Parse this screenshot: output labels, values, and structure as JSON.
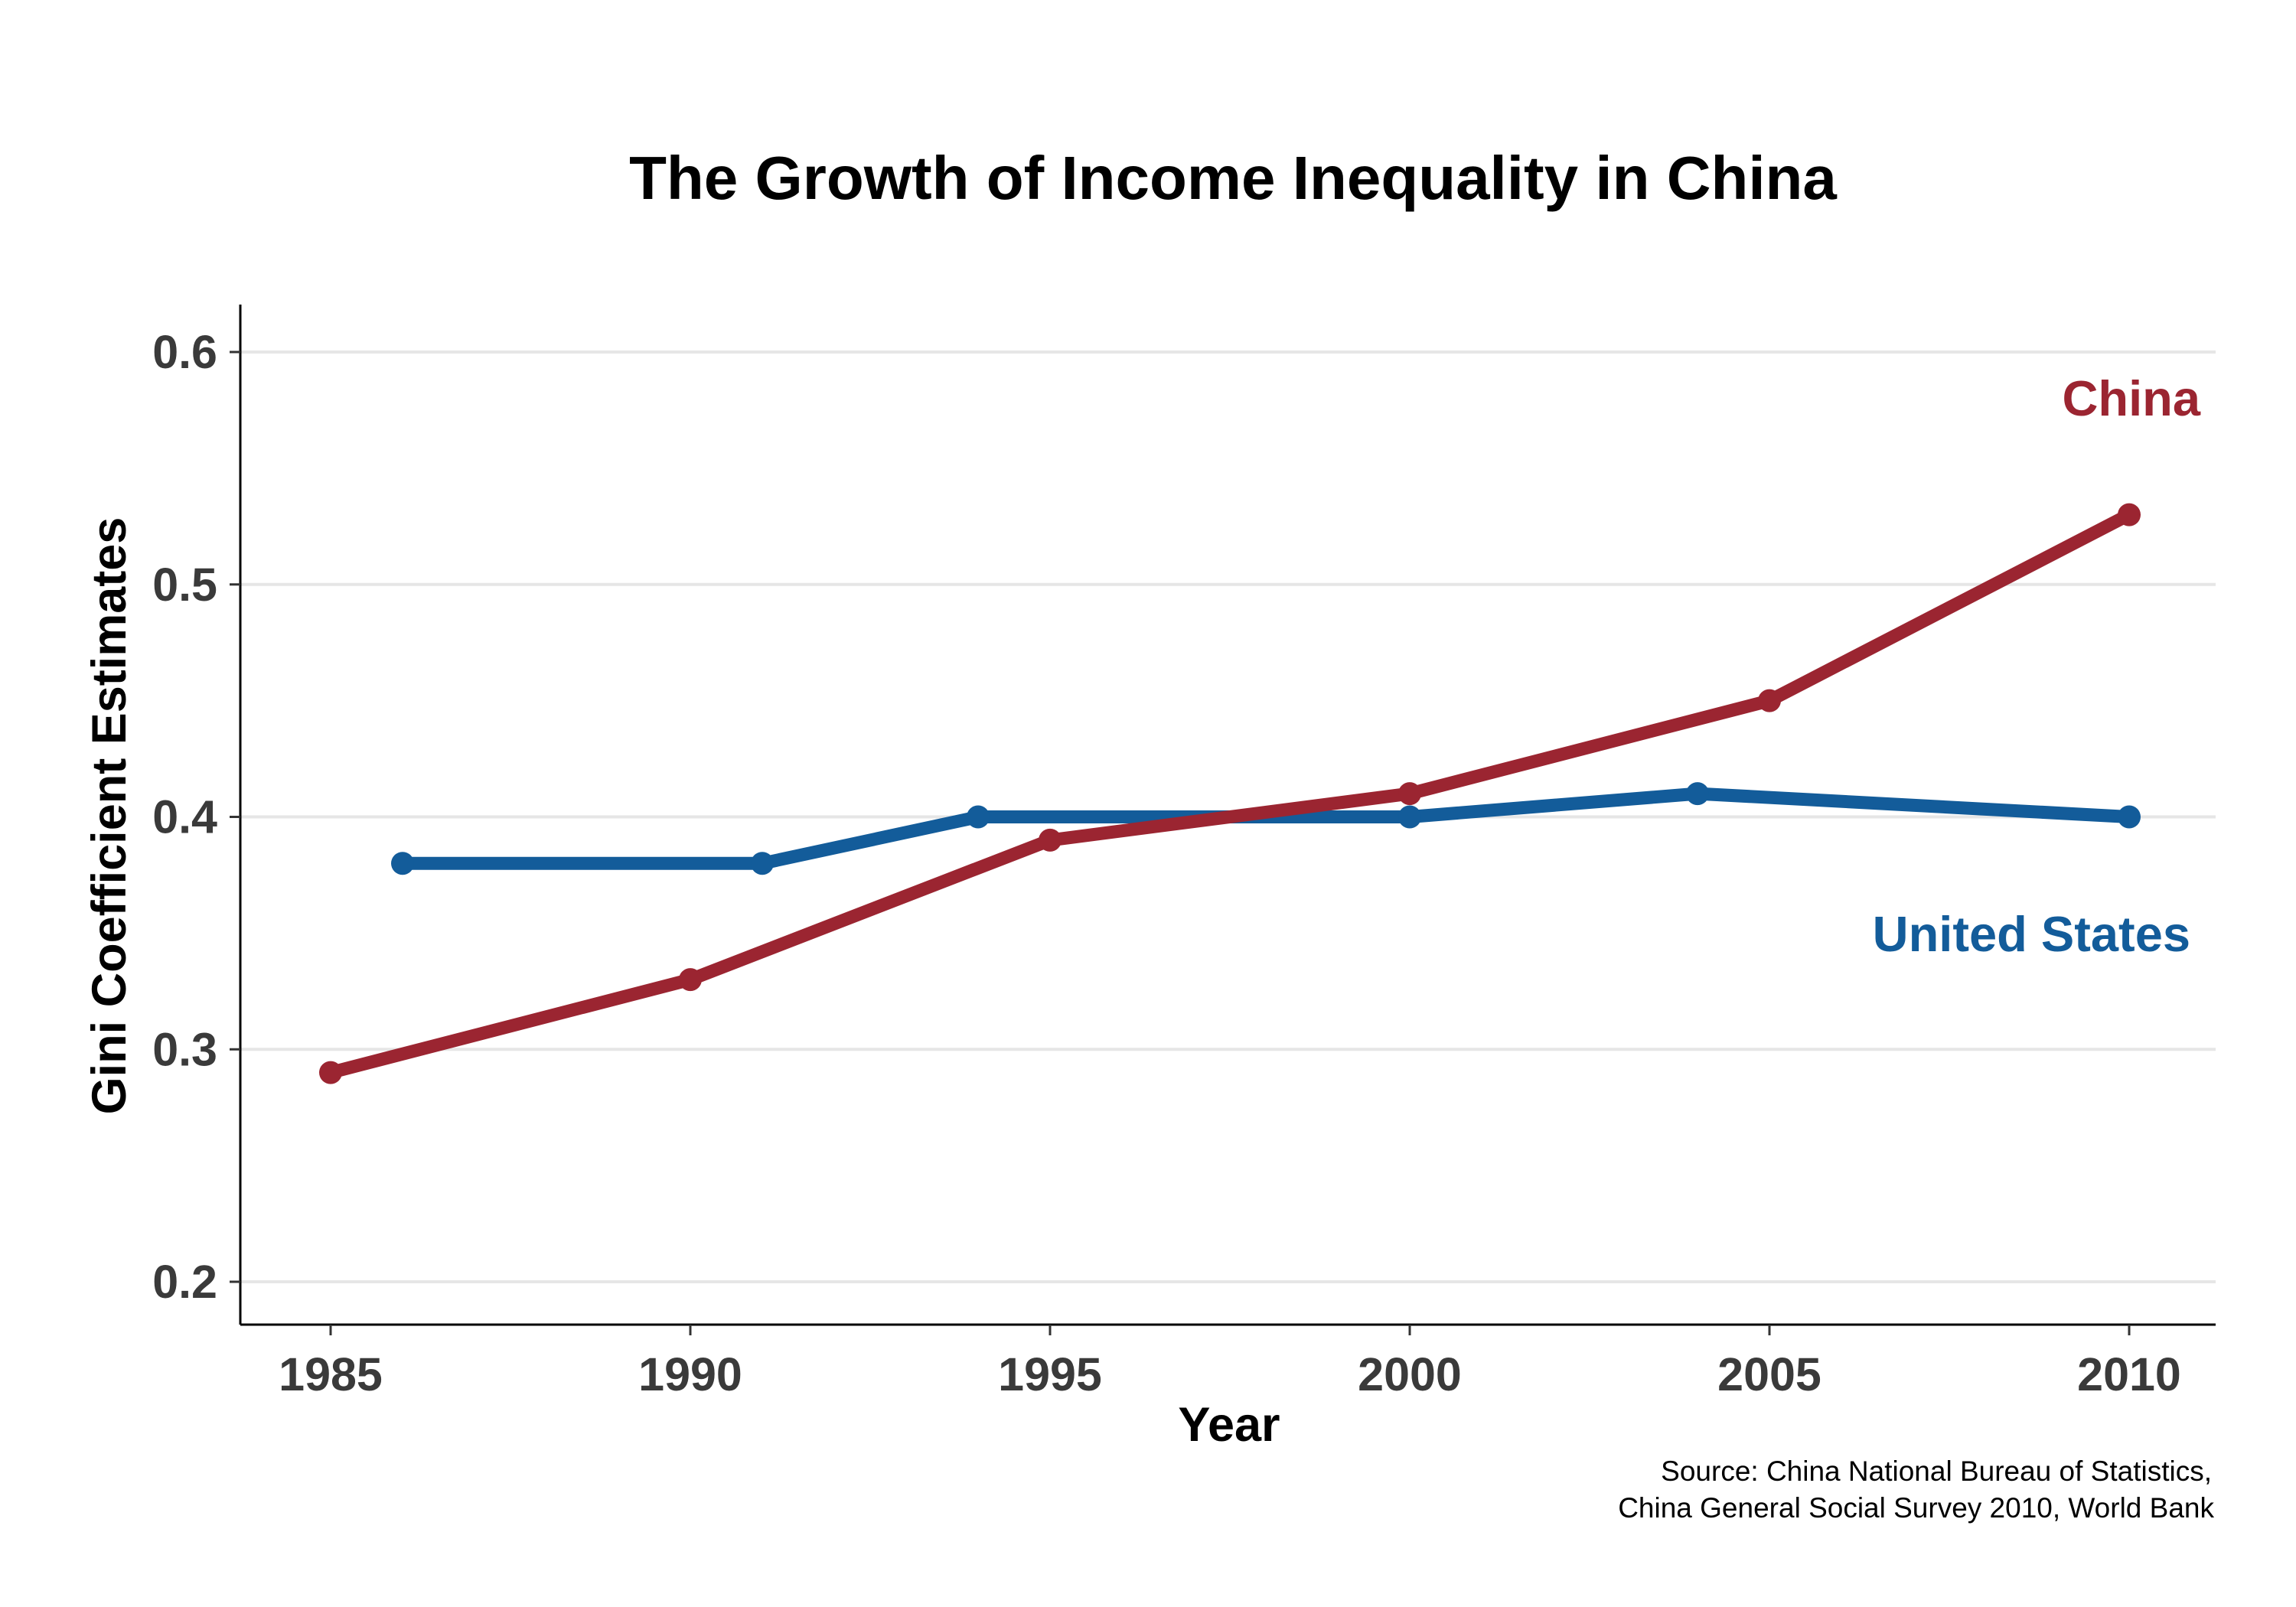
{
  "chart_data": {
    "type": "line",
    "title": "The Growth of Income Inequality in China",
    "xlabel": "Year",
    "ylabel": "Gini Coefficient Estimates",
    "source_lines": [
      "Source: China National Bureau of Statistics,",
      "China General Social Survey 2010, World Bank"
    ],
    "xlim": [
      1982.5,
      2012.5
    ],
    "ylim": [
      0.18,
      0.62
    ],
    "x_ticks": [
      1985,
      1990,
      1995,
      2000,
      2005,
      2010
    ],
    "x_tick_labels": [
      "1985",
      "1990",
      "1995",
      "2000",
      "2005",
      "2010"
    ],
    "y_ticks": [
      0.2,
      0.3,
      0.4,
      0.5,
      0.6
    ],
    "y_tick_labels": [
      "0.2",
      "0.3",
      "0.4",
      "0.5",
      "0.6"
    ],
    "grid": "horizontal",
    "legend": "direct labels, right side",
    "series": [
      {
        "name": "China",
        "color": "#9b2531",
        "label_position": "upper-right",
        "x": [
          1985,
          1990,
          1995,
          2000,
          2005,
          2010
        ],
        "y": [
          0.29,
          0.33,
          0.39,
          0.41,
          0.45,
          0.53
        ]
      },
      {
        "name": "United States",
        "color": "#135c9a",
        "label_position": "right, below line",
        "x": [
          1986,
          1991,
          1994,
          2000,
          2004,
          2010
        ],
        "y": [
          0.38,
          0.38,
          0.4,
          0.4,
          0.41,
          0.4
        ]
      }
    ]
  }
}
